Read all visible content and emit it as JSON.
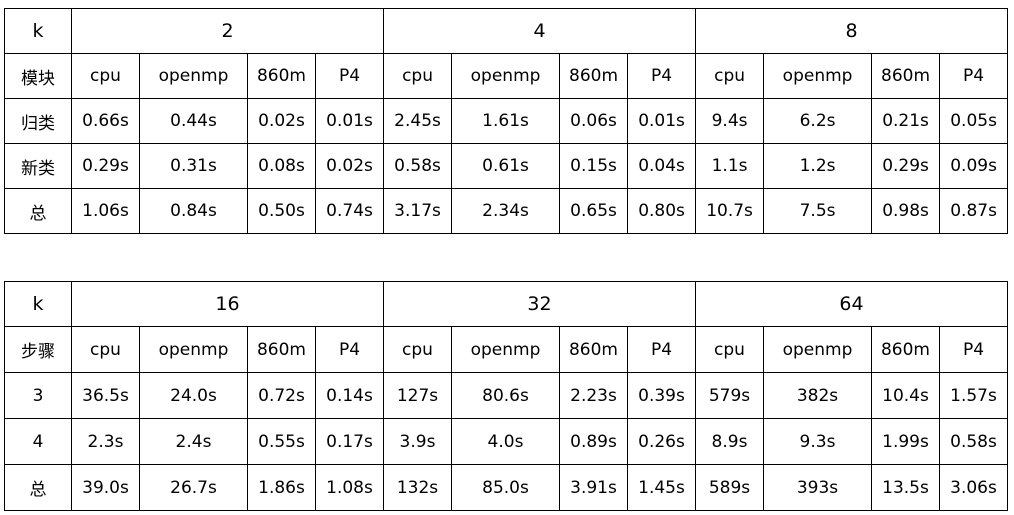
{
  "tables": [
    {
      "corner_label": "k",
      "groups": [
        "2",
        "4",
        "8"
      ],
      "row_label_header": "模块",
      "columns": [
        "cpu",
        "openmp",
        "860m",
        "P4"
      ],
      "rows": [
        {
          "label": "归类",
          "values": [
            "0.66s",
            "0.44s",
            "0.02s",
            "0.01s",
            "2.45s",
            "1.61s",
            "0.06s",
            "0.01s",
            "9.4s",
            "6.2s",
            "0.21s",
            "0.05s"
          ]
        },
        {
          "label": "新类",
          "values": [
            "0.29s",
            "0.31s",
            "0.08s",
            "0.02s",
            "0.58s",
            "0.61s",
            "0.15s",
            "0.04s",
            "1.1s",
            "1.2s",
            "0.29s",
            "0.09s"
          ]
        },
        {
          "label": "总",
          "values": [
            "1.06s",
            "0.84s",
            "0.50s",
            "0.74s",
            "3.17s",
            "2.34s",
            "0.65s",
            "0.80s",
            "10.7s",
            "7.5s",
            "0.98s",
            "0.87s"
          ]
        }
      ]
    },
    {
      "corner_label": "k",
      "groups": [
        "16",
        "32",
        "64"
      ],
      "row_label_header": "步骤",
      "columns": [
        "cpu",
        "openmp",
        "860m",
        "P4"
      ],
      "rows": [
        {
          "label": "3",
          "values": [
            "36.5s",
            "24.0s",
            "0.72s",
            "0.14s",
            "127s",
            "80.6s",
            "2.23s",
            "0.39s",
            "579s",
            "382s",
            "10.4s",
            "1.57s"
          ]
        },
        {
          "label": "4",
          "values": [
            "2.3s",
            "2.4s",
            "0.55s",
            "0.17s",
            "3.9s",
            "4.0s",
            "0.89s",
            "0.26s",
            "8.9s",
            "9.3s",
            "1.99s",
            "0.58s"
          ]
        },
        {
          "label": "总",
          "values": [
            "39.0s",
            "26.7s",
            "1.86s",
            "1.08s",
            "132s",
            "85.0s",
            "3.91s",
            "1.45s",
            "589s",
            "393s",
            "13.5s",
            "3.06s"
          ]
        }
      ]
    }
  ]
}
